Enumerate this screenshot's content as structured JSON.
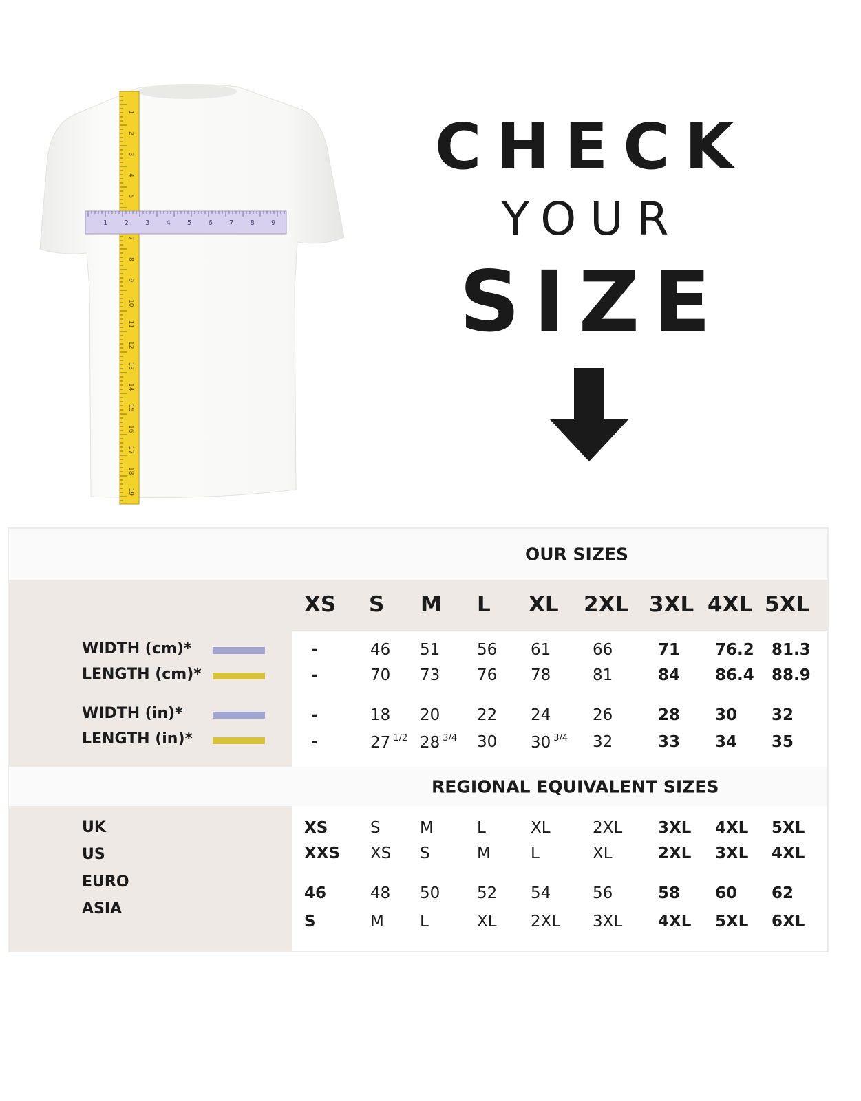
{
  "hero": {
    "line1": "CHECK",
    "line2": "YOUR",
    "line3": "SIZE",
    "arrow_icon": "arrow-down-icon"
  },
  "colors": {
    "width_bar": "#a4a6d2",
    "length_bar": "#d8c23c",
    "band_bg": "#fafafa",
    "panel_bg": "#eee9e5"
  },
  "our_sizes": {
    "title": "OUR SIZES",
    "headers": [
      "XS",
      "S",
      "M",
      "L",
      "XL",
      "2XL",
      "3XL",
      "4XL",
      "5XL"
    ],
    "rows": [
      {
        "label": "WIDTH (cm)*",
        "bar": "width",
        "cells": [
          {
            "v": "-"
          },
          {
            "v": "46"
          },
          {
            "v": "51"
          },
          {
            "v": "56"
          },
          {
            "v": "61"
          },
          {
            "v": "66"
          },
          {
            "v": "71"
          },
          {
            "v": "76.2"
          },
          {
            "v": "81.3"
          }
        ]
      },
      {
        "label": "LENGTH (cm)*",
        "bar": "length",
        "cells": [
          {
            "v": "-"
          },
          {
            "v": "70"
          },
          {
            "v": "73"
          },
          {
            "v": "76"
          },
          {
            "v": "78"
          },
          {
            "v": "81"
          },
          {
            "v": "84"
          },
          {
            "v": "86.4"
          },
          {
            "v": "88.9"
          }
        ]
      },
      {
        "label": "WIDTH (in)*",
        "bar": "width",
        "cells": [
          {
            "v": "-"
          },
          {
            "v": "18"
          },
          {
            "v": "20"
          },
          {
            "v": "22"
          },
          {
            "v": "24"
          },
          {
            "v": "26"
          },
          {
            "v": "28"
          },
          {
            "v": "30"
          },
          {
            "v": "32"
          }
        ]
      },
      {
        "label": "LENGTH (in)*",
        "bar": "length",
        "cells": [
          {
            "v": "-"
          },
          {
            "v": "27",
            "sup": "1/2"
          },
          {
            "v": "28",
            "sup": "3/4"
          },
          {
            "v": "30"
          },
          {
            "v": "30",
            "sup": "3/4"
          },
          {
            "v": "32"
          },
          {
            "v": "33"
          },
          {
            "v": "34"
          },
          {
            "v": "35"
          }
        ]
      }
    ]
  },
  "regional": {
    "title": "REGIONAL EQUIVALENT SIZES",
    "labels": [
      "UK",
      "US",
      "EURO",
      "ASIA"
    ],
    "rows": [
      [
        "XS",
        "S",
        "M",
        "L",
        "XL",
        "2XL",
        "3XL",
        "4XL",
        "5XL"
      ],
      [
        "XXS",
        "XS",
        "S",
        "M",
        "L",
        "XL",
        "2XL",
        "3XL",
        "4XL"
      ],
      [
        "46",
        "48",
        "50",
        "52",
        "54",
        "56",
        "58",
        "60",
        "62"
      ],
      [
        "S",
        "M",
        "L",
        "XL",
        "2XL",
        "3XL",
        "4XL",
        "5XL",
        "6XL"
      ]
    ]
  }
}
